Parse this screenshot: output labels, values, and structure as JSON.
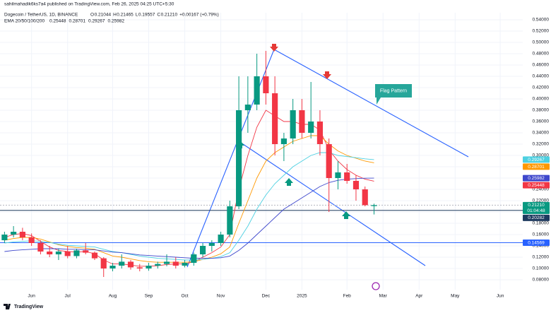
{
  "header": {
    "publisher": "sahilmahadik6ks7a4 published on TradingView.com, Feb 26, 2025 04:25 UTC+5:30",
    "symbol": "Dogecoin / TetherUS, 1D, BINANCE",
    "ohlc": [
      {
        "key": "O",
        "value": "0.21044"
      },
      {
        "key": "H",
        "value": "0.21465"
      },
      {
        "key": "L",
        "value": "0.19557"
      },
      {
        "key": "C",
        "value": "0.21210"
      }
    ],
    "change": "+0.00167 (+0.79%)",
    "indicator": "EMA 20/50/100/200",
    "annotation": "Flag Pattern",
    "brand": "TradingView"
  },
  "chart_data": {
    "type": "candlestick",
    "categories": [
      null,
      null,
      null,
      "Jun",
      null,
      null,
      null,
      "Jul",
      null,
      null,
      null,
      null,
      "Aug",
      null,
      null,
      null,
      "Sep",
      null,
      null,
      null,
      "Oct",
      null,
      null,
      null,
      "Nov",
      null,
      null,
      null,
      null,
      "Dec",
      null,
      null,
      null,
      "2025",
      null,
      null,
      null,
      null,
      "Feb",
      null,
      null,
      null,
      "Mar",
      null,
      null,
      null,
      "Apr",
      null,
      null,
      null,
      "May",
      null,
      null,
      null,
      null,
      "Jun",
      null,
      null
    ],
    "open": [
      0.15,
      0.16,
      0.165,
      0.155,
      0.145,
      0.13,
      0.125,
      0.13,
      0.122,
      0.132,
      0.128,
      0.118,
      0.1,
      0.105,
      0.112,
      0.102,
      0.1,
      0.105,
      0.108,
      0.112,
      0.105,
      0.11,
      0.125,
      0.14,
      0.145,
      0.16,
      0.21,
      0.38,
      0.39,
      0.44,
      0.41,
      0.32,
      0.33,
      0.38,
      0.34,
      0.36,
      0.32,
      0.26,
      0.27,
      0.255,
      0.24,
      0.21044,
      null,
      null,
      null,
      null,
      null,
      null,
      null,
      null,
      null,
      null,
      null,
      null,
      null,
      null,
      null,
      null
    ],
    "high": [
      0.165,
      0.175,
      0.172,
      0.162,
      0.15,
      0.14,
      0.135,
      0.14,
      0.135,
      0.145,
      0.13,
      0.12,
      0.11,
      0.125,
      0.115,
      0.108,
      0.11,
      0.112,
      0.125,
      0.12,
      0.115,
      0.128,
      0.145,
      0.15,
      0.165,
      0.22,
      0.44,
      0.44,
      0.48,
      0.485,
      0.44,
      0.34,
      0.4,
      0.4,
      0.43,
      0.38,
      0.33,
      0.29,
      0.285,
      0.265,
      0.245,
      0.21465,
      null,
      null,
      null,
      null,
      null,
      null,
      null,
      null,
      null,
      null,
      null,
      null,
      null,
      null,
      null,
      null
    ],
    "low": [
      0.145,
      0.155,
      0.15,
      0.14,
      0.125,
      0.12,
      0.115,
      0.118,
      0.118,
      0.125,
      0.115,
      0.085,
      0.095,
      0.1,
      0.098,
      0.095,
      0.096,
      0.1,
      0.104,
      0.1,
      0.102,
      0.105,
      0.12,
      0.13,
      0.14,
      0.155,
      0.205,
      0.34,
      0.38,
      0.39,
      0.3,
      0.29,
      0.32,
      0.33,
      0.33,
      0.3,
      0.2,
      0.24,
      0.25,
      0.22,
      0.21,
      0.19557,
      null,
      null,
      null,
      null,
      null,
      null,
      null,
      null,
      null,
      null,
      null,
      null,
      null,
      null,
      null,
      null
    ],
    "close": [
      0.16,
      0.165,
      0.155,
      0.145,
      0.13,
      0.125,
      0.13,
      0.122,
      0.132,
      0.128,
      0.118,
      0.1,
      0.105,
      0.112,
      0.102,
      0.1,
      0.105,
      0.108,
      0.112,
      0.105,
      0.11,
      0.125,
      0.14,
      0.145,
      0.16,
      0.21,
      0.38,
      0.39,
      0.44,
      0.41,
      0.32,
      0.33,
      0.38,
      0.34,
      0.36,
      0.32,
      0.26,
      0.27,
      0.255,
      0.24,
      0.212,
      0.2121,
      null,
      null,
      null,
      null,
      null,
      null,
      null,
      null,
      null,
      null,
      null,
      null,
      null,
      null,
      null,
      null
    ],
    "up_color": "#089981",
    "down_color": "#f23645",
    "series": [
      {
        "color": "#f23645",
        "values": [
          0.155,
          0.16,
          0.162,
          0.158,
          0.148,
          0.138,
          0.132,
          0.13,
          0.129,
          0.13,
          0.126,
          0.115,
          0.108,
          0.108,
          0.106,
          0.104,
          0.104,
          0.105,
          0.107,
          0.108,
          0.108,
          0.112,
          0.12,
          0.128,
          0.138,
          0.16,
          0.24,
          0.3,
          0.35,
          0.38,
          0.37,
          0.36,
          0.36,
          0.355,
          0.355,
          0.345,
          0.31,
          0.29,
          0.275,
          0.265,
          0.258,
          0.25448,
          null,
          null,
          null,
          null,
          null,
          null,
          null,
          null,
          null,
          null,
          null,
          null,
          null,
          null,
          null,
          null
        ]
      },
      {
        "color": "#ff9800",
        "values": [
          0.15,
          0.153,
          0.155,
          0.155,
          0.152,
          0.147,
          0.142,
          0.139,
          0.137,
          0.136,
          0.134,
          0.128,
          0.122,
          0.12,
          0.117,
          0.114,
          0.112,
          0.111,
          0.111,
          0.111,
          0.111,
          0.112,
          0.116,
          0.12,
          0.126,
          0.138,
          0.18,
          0.22,
          0.26,
          0.29,
          0.305,
          0.315,
          0.325,
          0.33,
          0.335,
          0.335,
          0.32,
          0.308,
          0.3,
          0.295,
          0.29,
          0.28701,
          null,
          null,
          null,
          null,
          null,
          null,
          null,
          null,
          null,
          null,
          null,
          null,
          null,
          null,
          null,
          null
        ]
      },
      {
        "color": "#4dd0e1",
        "values": [
          0.145,
          0.147,
          0.148,
          0.149,
          0.148,
          0.146,
          0.143,
          0.141,
          0.14,
          0.139,
          0.138,
          0.134,
          0.13,
          0.128,
          0.125,
          0.122,
          0.12,
          0.118,
          0.117,
          0.116,
          0.115,
          0.115,
          0.116,
          0.118,
          0.121,
          0.128,
          0.15,
          0.175,
          0.205,
          0.23,
          0.25,
          0.265,
          0.28,
          0.29,
          0.3,
          0.305,
          0.305,
          0.3,
          0.298,
          0.296,
          0.294,
          0.29267,
          null,
          null,
          null,
          null,
          null,
          null,
          null,
          null,
          null,
          null,
          null,
          null,
          null,
          null,
          null,
          null
        ]
      },
      {
        "color": "#3f48cc",
        "values": [
          0.13,
          0.132,
          0.133,
          0.134,
          0.135,
          0.135,
          0.135,
          0.134,
          0.134,
          0.133,
          0.133,
          0.131,
          0.129,
          0.128,
          0.126,
          0.124,
          0.123,
          0.122,
          0.121,
          0.12,
          0.119,
          0.118,
          0.118,
          0.118,
          0.119,
          0.122,
          0.132,
          0.145,
          0.16,
          0.175,
          0.19,
          0.205,
          0.215,
          0.225,
          0.235,
          0.245,
          0.252,
          0.256,
          0.258,
          0.259,
          0.2598,
          0.25982,
          null,
          null,
          null,
          null,
          null,
          null,
          null,
          null,
          null,
          null,
          null,
          null,
          null,
          null,
          null,
          null
        ]
      }
    ],
    "ylim": [
      0.0625,
      0.5525
    ],
    "yticks": [
      {
        "value": 0.08,
        "label": "0.08000"
      },
      {
        "value": 0.1,
        "label": "0.10000"
      },
      {
        "value": 0.12,
        "label": "0.12000"
      },
      {
        "value": 0.14,
        "label": "0.14000"
      },
      {
        "value": 0.16,
        "label": "0.16000"
      },
      {
        "value": 0.18,
        "label": "0.18000"
      },
      {
        "value": 0.2,
        "label": "0.20000"
      },
      {
        "value": 0.22,
        "label": "0.22000"
      },
      {
        "value": 0.24,
        "label": "0.24000"
      },
      {
        "value": 0.26,
        "label": "0.26000"
      },
      {
        "value": 0.28,
        "label": "0.28000"
      },
      {
        "value": 0.3,
        "label": "0.30000"
      },
      {
        "value": 0.32,
        "label": "0.32000"
      },
      {
        "value": 0.34,
        "label": "0.34000"
      },
      {
        "value": 0.36,
        "label": "0.36000"
      },
      {
        "value": 0.38,
        "label": "0.38000"
      },
      {
        "value": 0.4,
        "label": "0.40000"
      },
      {
        "value": 0.42,
        "label": "0.42000"
      },
      {
        "value": 0.44,
        "label": "0.44000"
      },
      {
        "value": 0.46,
        "label": "0.46000"
      },
      {
        "value": 0.48,
        "label": "0.48000"
      },
      {
        "value": 0.5,
        "label": "0.50000"
      },
      {
        "value": 0.52,
        "label": "0.52000"
      },
      {
        "value": 0.54,
        "label": "0.54000"
      }
    ],
    "grid": true,
    "current_price": {
      "value": 0.2121,
      "label": "0.21210",
      "countdown": "01:04:48",
      "color": "#089981"
    },
    "levels": [
      {
        "value": 0.20282,
        "label": "0.20282",
        "color": "#1e3a5f"
      },
      {
        "value": 0.14569,
        "label": "0.14569",
        "color": "#2962ff"
      }
    ]
  }
}
